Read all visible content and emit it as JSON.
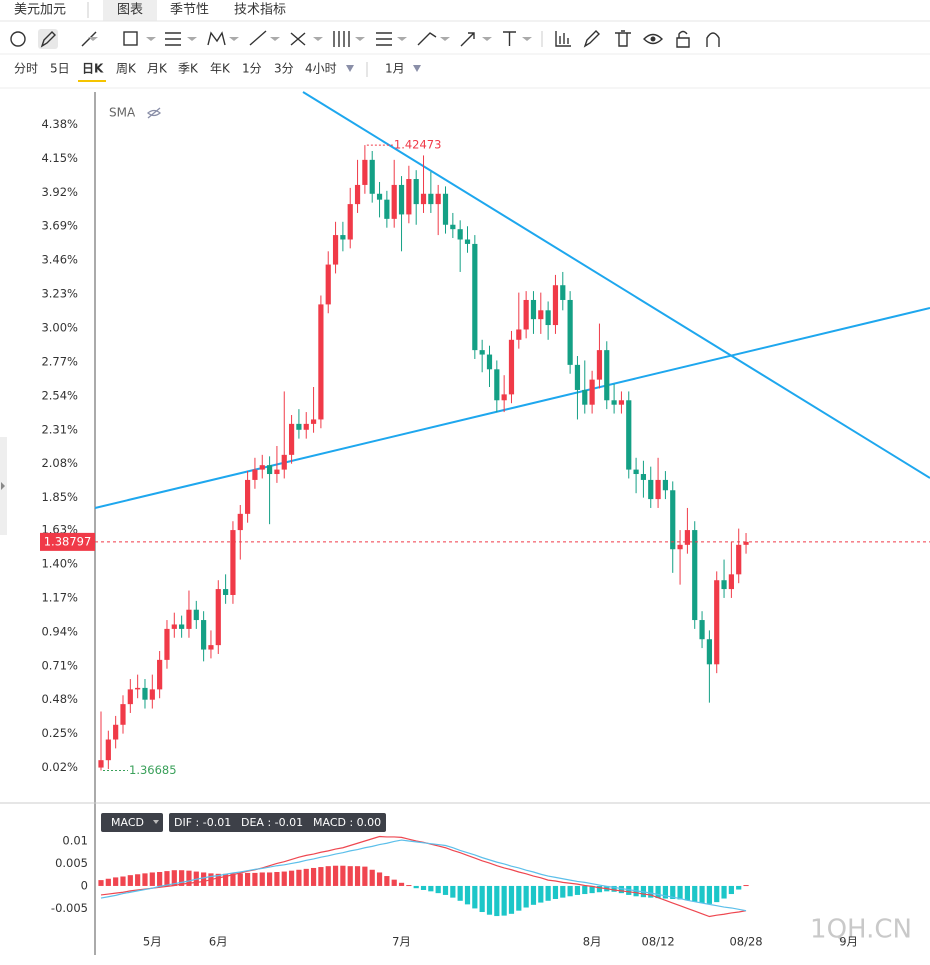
{
  "tabs": [
    "美元加元",
    "图表",
    "季节性",
    "技术指标"
  ],
  "timeframes": [
    "分时",
    "5日",
    "日K",
    "周K",
    "月K",
    "季K",
    "年K",
    "1分",
    "3分",
    "4小时"
  ],
  "range_label": "1月",
  "watermark": "1QH.CN",
  "chart_data": [
    {
      "type": "candlestick",
      "indicator": "SMA",
      "categories": [
        null,
        null,
        null,
        null,
        null,
        null,
        null,
        "5月",
        null,
        null,
        null,
        null,
        null,
        null,
        null,
        null,
        "6月",
        null,
        null,
        null,
        null,
        null,
        null,
        null,
        null,
        null,
        null,
        null,
        null,
        null,
        null,
        null,
        null,
        null,
        null,
        null,
        null,
        null,
        null,
        null,
        null,
        "7月",
        null,
        null,
        null,
        null,
        null,
        null,
        null,
        null,
        null,
        null,
        null,
        null,
        null,
        null,
        null,
        null,
        null,
        null,
        null,
        null,
        null,
        null,
        null,
        null,
        null,
        "8月",
        null,
        null,
        null,
        null,
        null,
        null,
        null,
        null,
        "08/12",
        null,
        null,
        null,
        null,
        null,
        null,
        null,
        null,
        null,
        null,
        null,
        "08/28",
        null,
        null,
        null,
        null,
        null,
        null,
        null,
        null,
        null,
        null,
        null,
        null,
        null,
        "9月"
      ],
      "open": [
        0.02,
        0.07,
        0.21,
        0.31,
        0.45,
        0.55,
        0.56,
        0.48,
        0.55,
        0.75,
        0.96,
        0.99,
        0.96,
        1.09,
        1.02,
        0.82,
        0.85,
        1.23,
        1.19,
        1.63,
        1.74,
        1.97,
        2.04,
        2.07,
        2.01,
        2.04,
        2.14,
        2.35,
        2.31,
        2.35,
        2.38,
        3.16,
        3.43,
        3.63,
        3.6,
        3.84,
        3.97,
        4.14,
        3.91,
        3.87,
        3.74,
        3.97,
        3.77,
        4.01,
        3.84,
        3.91,
        3.84,
        3.91,
        3.7,
        3.67,
        3.6,
        3.57,
        2.85,
        2.82,
        2.72,
        2.51,
        2.55,
        2.92,
        2.99,
        3.19,
        3.06,
        3.12,
        3.02,
        3.29,
        3.19,
        2.75,
        2.58,
        2.48,
        2.65,
        2.85,
        2.51,
        2.48,
        2.51,
        2.04,
        2.01,
        1.97,
        1.84,
        1.97,
        1.9,
        1.5,
        1.53,
        1.63,
        1.02,
        0.89,
        0.72,
        1.29,
        1.23,
        1.33,
        1.53,
        null,
        null,
        null,
        null,
        null,
        null,
        null,
        null,
        null,
        null,
        null,
        null,
        null,
        null
      ],
      "high": [
        0.4,
        0.27,
        0.37,
        0.51,
        0.62,
        0.65,
        0.62,
        0.65,
        0.81,
        1.02,
        1.07,
        1.05,
        1.22,
        1.15,
        1.08,
        0.95,
        1.29,
        1.33,
        1.69,
        1.8,
        2.03,
        2.12,
        2.14,
        2.13,
        2.2,
        2.57,
        2.41,
        2.45,
        2.43,
        2.6,
        3.22,
        3.52,
        3.72,
        3.72,
        3.95,
        4.14,
        4.24,
        4.2,
        3.99,
        3.93,
        4.14,
        4.03,
        4.1,
        4.07,
        4.17,
        4.06,
        3.97,
        3.96,
        3.78,
        3.73,
        3.69,
        3.63,
        2.92,
        2.88,
        2.78,
        2.68,
        2.98,
        3.24,
        3.25,
        3.25,
        3.24,
        3.18,
        3.36,
        3.38,
        3.25,
        2.81,
        2.78,
        2.71,
        3.03,
        2.91,
        2.62,
        2.57,
        2.57,
        2.12,
        2.1,
        2.06,
        2.12,
        2.03,
        1.96,
        1.63,
        1.78,
        1.69,
        1.08,
        0.95,
        1.35,
        1.43,
        1.55,
        1.64,
        1.61,
        null,
        null,
        null,
        null,
        null,
        null,
        null,
        null,
        null,
        null,
        null,
        null,
        null,
        null
      ],
      "low": [
        0.0,
        0.01,
        0.15,
        0.25,
        0.39,
        0.49,
        0.42,
        0.42,
        0.49,
        0.69,
        0.9,
        0.9,
        0.9,
        0.96,
        0.74,
        0.76,
        0.79,
        1.13,
        1.13,
        1.43,
        1.68,
        1.91,
        1.98,
        1.67,
        1.95,
        1.98,
        2.08,
        2.25,
        2.25,
        2.29,
        2.32,
        3.1,
        3.37,
        3.52,
        3.54,
        3.78,
        3.91,
        3.85,
        3.75,
        3.68,
        3.68,
        3.52,
        3.71,
        3.7,
        3.78,
        3.78,
        3.63,
        3.64,
        3.61,
        3.38,
        3.51,
        2.79,
        2.7,
        2.6,
        2.43,
        2.43,
        2.49,
        2.86,
        2.93,
        2.96,
        2.96,
        2.92,
        2.96,
        3.12,
        2.69,
        2.38,
        2.42,
        2.42,
        2.59,
        2.45,
        2.42,
        2.42,
        1.98,
        1.88,
        1.85,
        1.78,
        1.78,
        1.84,
        1.34,
        1.26,
        1.47,
        0.96,
        0.83,
        0.46,
        0.66,
        1.17,
        1.17,
        1.27,
        1.47,
        null,
        null,
        null,
        null,
        null,
        null,
        null,
        null,
        null,
        null,
        null,
        null,
        null,
        null
      ],
      "close": [
        0.07,
        0.21,
        0.31,
        0.45,
        0.55,
        0.56,
        0.48,
        0.55,
        0.75,
        0.96,
        0.99,
        0.96,
        1.09,
        1.02,
        0.82,
        0.85,
        1.23,
        1.19,
        1.63,
        1.74,
        1.97,
        2.04,
        2.07,
        2.01,
        2.04,
        2.14,
        2.35,
        2.31,
        2.35,
        2.38,
        3.16,
        3.43,
        3.63,
        3.6,
        3.84,
        3.97,
        4.14,
        3.91,
        3.87,
        3.74,
        3.97,
        3.77,
        4.01,
        3.84,
        3.91,
        3.84,
        3.91,
        3.7,
        3.67,
        3.6,
        3.57,
        2.85,
        2.82,
        2.72,
        2.51,
        2.55,
        2.92,
        2.99,
        3.19,
        3.06,
        3.12,
        3.02,
        3.29,
        3.19,
        2.75,
        2.58,
        2.48,
        2.65,
        2.85,
        2.51,
        2.48,
        2.51,
        2.04,
        2.01,
        1.97,
        1.84,
        1.97,
        1.9,
        1.5,
        1.53,
        1.63,
        1.02,
        0.89,
        0.72,
        1.29,
        1.23,
        1.33,
        1.53,
        1.55,
        null,
        null,
        null,
        null,
        null,
        null,
        null,
        null,
        null,
        null,
        null,
        null,
        null,
        null
      ],
      "up_color": "#f03a48",
      "down_color": "#14a085",
      "ylim": [
        -0.2,
        4.6
      ],
      "yticks": [
        {
          "value": 0.02,
          "label": "0.02%"
        },
        {
          "value": 0.25,
          "label": "0.25%"
        },
        {
          "value": 0.48,
          "label": "0.48%"
        },
        {
          "value": 0.71,
          "label": "0.71%"
        },
        {
          "value": 0.94,
          "label": "0.94%"
        },
        {
          "value": 1.17,
          "label": "1.17%"
        },
        {
          "value": 1.4,
          "label": "1.40%"
        },
        {
          "value": 1.63,
          "label": "1.63%"
        },
        {
          "value": 1.85,
          "label": "1.85%"
        },
        {
          "value": 2.08,
          "label": "2.08%"
        },
        {
          "value": 2.31,
          "label": "2.31%"
        },
        {
          "value": 2.54,
          "label": "2.54%"
        },
        {
          "value": 2.77,
          "label": "2.77%"
        },
        {
          "value": 3.0,
          "label": "3.00%"
        },
        {
          "value": 3.23,
          "label": "3.23%"
        },
        {
          "value": 3.46,
          "label": "3.46%"
        },
        {
          "value": 3.69,
          "label": "3.69%"
        },
        {
          "value": 3.92,
          "label": "3.92%"
        },
        {
          "value": 4.15,
          "label": "4.15%"
        },
        {
          "value": 4.38,
          "label": "4.38%"
        }
      ],
      "last_price_label": "1.38797",
      "high_label": "1.42473",
      "low_label": "1.36685"
    },
    {
      "type": "macd",
      "title": "MACD",
      "readout": [
        "DIF : -0.01",
        "DEA : -0.01",
        "MACD : 0.00"
      ],
      "series": [
        {
          "color": "#ee4750",
          "values": [
            -0.002,
            -0.0018,
            -0.0016,
            -0.0014,
            -0.0011,
            -0.0009,
            -0.0007,
            -0.0005,
            -0.0003,
            -0.0001,
            0.0001,
            0.0004,
            0.0006,
            0.0008,
            0.001,
            0.0014,
            0.0018,
            0.0021,
            0.0025,
            0.0029,
            0.0033,
            0.0036,
            0.004,
            0.0045,
            0.005,
            0.0054,
            0.0059,
            0.0064,
            0.0068,
            0.0071,
            0.0075,
            0.0078,
            0.0082,
            0.0085,
            0.009,
            0.0095,
            0.01,
            0.0105,
            0.011,
            0.0109,
            0.0109,
            0.0108,
            0.0104,
            0.01,
            0.0097,
            0.0093,
            0.0089,
            0.0085,
            0.0079,
            0.0074,
            0.0068,
            0.0062,
            0.0056,
            0.0051,
            0.0045,
            0.004,
            0.0036,
            0.0031,
            0.0027,
            0.0022,
            0.0018,
            0.0013,
            0.0011,
            0.0008,
            0.0006,
            0.0004,
            0.0001,
            -0.0001,
            -0.0004,
            -0.0006,
            -0.0009,
            -0.0011,
            -0.0013,
            -0.0015,
            -0.0018,
            -0.002,
            -0.0026,
            -0.0032,
            -0.0038,
            -0.0044,
            -0.005,
            -0.0056,
            -0.0062,
            -0.0068,
            -0.0065,
            -0.0063,
            -0.006,
            -0.0058,
            -0.0055,
            null,
            null,
            null,
            null,
            null,
            null,
            null,
            null,
            null,
            null,
            null,
            null,
            null,
            null
          ]
        },
        {
          "color": "#5cbfea",
          "values": [
            -0.0027,
            -0.0024,
            -0.0021,
            -0.0017,
            -0.0014,
            -0.0011,
            -0.0008,
            -0.0005,
            -0.0001,
            0.0002,
            0.0005,
            0.0008,
            0.0011,
            0.0015,
            0.0018,
            0.0021,
            0.0023,
            0.0026,
            0.0029,
            0.0031,
            0.0034,
            0.0037,
            0.0039,
            0.0042,
            0.0045,
            0.0047,
            0.005,
            0.0053,
            0.0057,
            0.006,
            0.0064,
            0.0067,
            0.0071,
            0.0074,
            0.0078,
            0.0081,
            0.0085,
            0.0088,
            0.0092,
            0.0095,
            0.0099,
            0.0102,
            0.01,
            0.0098,
            0.0096,
            0.0094,
            0.0092,
            0.009,
            0.0085,
            0.0079,
            0.0074,
            0.0069,
            0.0063,
            0.0058,
            0.0053,
            0.0049,
            0.0044,
            0.004,
            0.0035,
            0.0031,
            0.0026,
            0.0022,
            0.0019,
            0.0016,
            0.0013,
            0.001,
            0.0008,
            0.0005,
            0.0002,
            -0.0001,
            -0.0003,
            -0.0006,
            -0.0008,
            -0.0011,
            -0.0013,
            -0.0016,
            -0.0019,
            -0.0022,
            -0.0025,
            -0.0028,
            -0.0032,
            -0.0035,
            -0.0038,
            -0.0041,
            -0.0044,
            -0.0047,
            -0.0049,
            -0.0052,
            -0.0055,
            null,
            null,
            null,
            null,
            null,
            null,
            null,
            null,
            null,
            null,
            null,
            null,
            null,
            null
          ]
        }
      ],
      "histogram": {
        "up_color": "#f0454f",
        "down_color": "#1cc6c8",
        "values": [
          0.0013,
          0.0016,
          0.0019,
          0.0021,
          0.0024,
          0.0026,
          0.0028,
          0.003,
          0.0031,
          0.0033,
          0.0035,
          0.0035,
          0.0034,
          0.0032,
          0.003,
          0.0028,
          0.0027,
          0.0027,
          0.0028,
          0.0028,
          0.0029,
          0.0029,
          0.003,
          0.003,
          0.0031,
          0.0032,
          0.0034,
          0.0036,
          0.0038,
          0.004,
          0.0042,
          0.0044,
          0.0045,
          0.0045,
          0.0044,
          0.0044,
          0.0043,
          0.0036,
          0.003,
          0.0022,
          0.0014,
          0.0007,
          0.0002,
          -0.0005,
          -0.0009,
          -0.0012,
          -0.0016,
          -0.002,
          -0.0026,
          -0.0033,
          -0.0041,
          -0.005,
          -0.0058,
          -0.0064,
          -0.0067,
          -0.0066,
          -0.0062,
          -0.0055,
          -0.0048,
          -0.0042,
          -0.0037,
          -0.0033,
          -0.0029,
          -0.0026,
          -0.0023,
          -0.002,
          -0.0018,
          -0.0016,
          -0.0014,
          -0.0012,
          -0.0013,
          -0.0016,
          -0.002,
          -0.0023,
          -0.0025,
          -0.0026,
          -0.0027,
          -0.0028,
          -0.0029,
          -0.003,
          -0.0032,
          -0.0035,
          -0.0038,
          -0.004,
          -0.0036,
          -0.0028,
          -0.0018,
          -0.0008,
          0.0002,
          null,
          null,
          null,
          null,
          null,
          null,
          null,
          null,
          null,
          null,
          null,
          null,
          null,
          null
        ]
      },
      "ylim": [
        -0.0098,
        0.012
      ],
      "yticks": [
        0.01,
        0.005,
        0,
        -0.005
      ]
    }
  ]
}
